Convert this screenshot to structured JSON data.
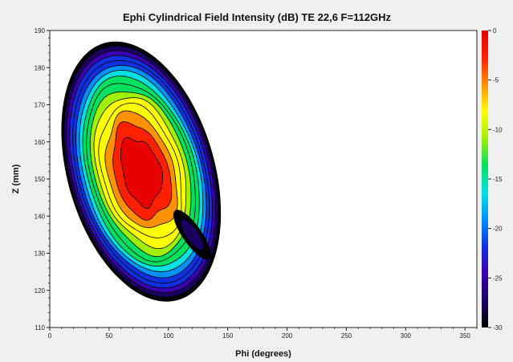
{
  "chart_data": {
    "type": "heatmap",
    "title": "Ephi Cylindrical Field Intensity (dB) TE 22,6  F=112GHz",
    "xlabel": "Phi (degrees)",
    "ylabel": "Z (mm)",
    "xlim": [
      0,
      360
    ],
    "ylim": [
      110,
      190
    ],
    "x_ticks": [
      0,
      50,
      100,
      150,
      200,
      250,
      300,
      350
    ],
    "y_ticks": [
      110,
      120,
      130,
      140,
      150,
      160,
      170,
      180,
      190
    ],
    "colorbar": {
      "range": [
        -30,
        0
      ],
      "ticks": [
        0,
        -5,
        -10,
        -15,
        -20,
        -25,
        -30
      ],
      "colormap": [
        "#000000",
        "#1a0060",
        "#3a00b0",
        "#1030e0",
        "#0090ff",
        "#00e0e0",
        "#00e060",
        "#a0f000",
        "#ffff00",
        "#ff9000",
        "#ff2000",
        "#e80000"
      ]
    },
    "contour_levels_db": [
      -28,
      -26,
      -24,
      -22,
      -20,
      -18,
      -16,
      -14,
      -12,
      -10,
      -8,
      -6,
      -4,
      -2
    ],
    "peak": {
      "phi": 77,
      "z": 152,
      "value_db": 0
    },
    "lobes": [
      {
        "name": "main",
        "phi": 77,
        "z": 152,
        "phi_halfwidth": 62,
        "z_halfwidth": 36
      },
      {
        "name": "side",
        "phi": 120,
        "z": 135,
        "phi_halfwidth": 8,
        "z_halfwidth": 8
      }
    ]
  }
}
